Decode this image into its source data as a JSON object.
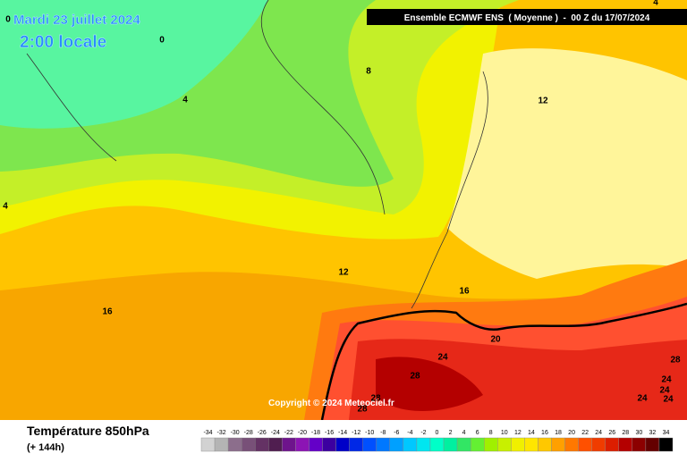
{
  "header": {
    "date": "Mardi 23 juillet 2024",
    "time": "2:00 locale",
    "model": "Ensemble ECMWF ENS  ( Moyenne )  -  00 Z du 17/07/2024"
  },
  "contour_labels": [
    0,
    0,
    4,
    8,
    4,
    12,
    4,
    12,
    16,
    16,
    20,
    24,
    28,
    28,
    24,
    24,
    24,
    24,
    28,
    28
  ],
  "copyright": "Copyright © 2024 Meteociel.fr",
  "legend": {
    "title": "Température 850hPa",
    "lead": "(+ 144h)",
    "values": [
      -34,
      -32,
      -30,
      -28,
      -26,
      -24,
      -22,
      -20,
      -18,
      -16,
      -14,
      -12,
      -10,
      -8,
      -6,
      -4,
      -2,
      0,
      2,
      4,
      6,
      8,
      10,
      12,
      14,
      16,
      18,
      20,
      22,
      24,
      26,
      28,
      30,
      32,
      34
    ],
    "colors": [
      "#d2d2d2",
      "#b4b4b4",
      "#8c6e8c",
      "#785078",
      "#643264",
      "#501e50",
      "#6e148c",
      "#8c14b4",
      "#6400c8",
      "#3c00a0",
      "#0000c8",
      "#0028e6",
      "#0050ff",
      "#0078ff",
      "#00a0ff",
      "#00c8ff",
      "#00e6f0",
      "#00ffc8",
      "#00f0a0",
      "#32e664",
      "#64f032",
      "#a0f000",
      "#c8f000",
      "#f0f000",
      "#ffe600",
      "#ffc800",
      "#ffa000",
      "#ff7800",
      "#ff5000",
      "#f03c00",
      "#dc1e00",
      "#b40000",
      "#8c0000",
      "#640000",
      "#000000"
    ]
  }
}
